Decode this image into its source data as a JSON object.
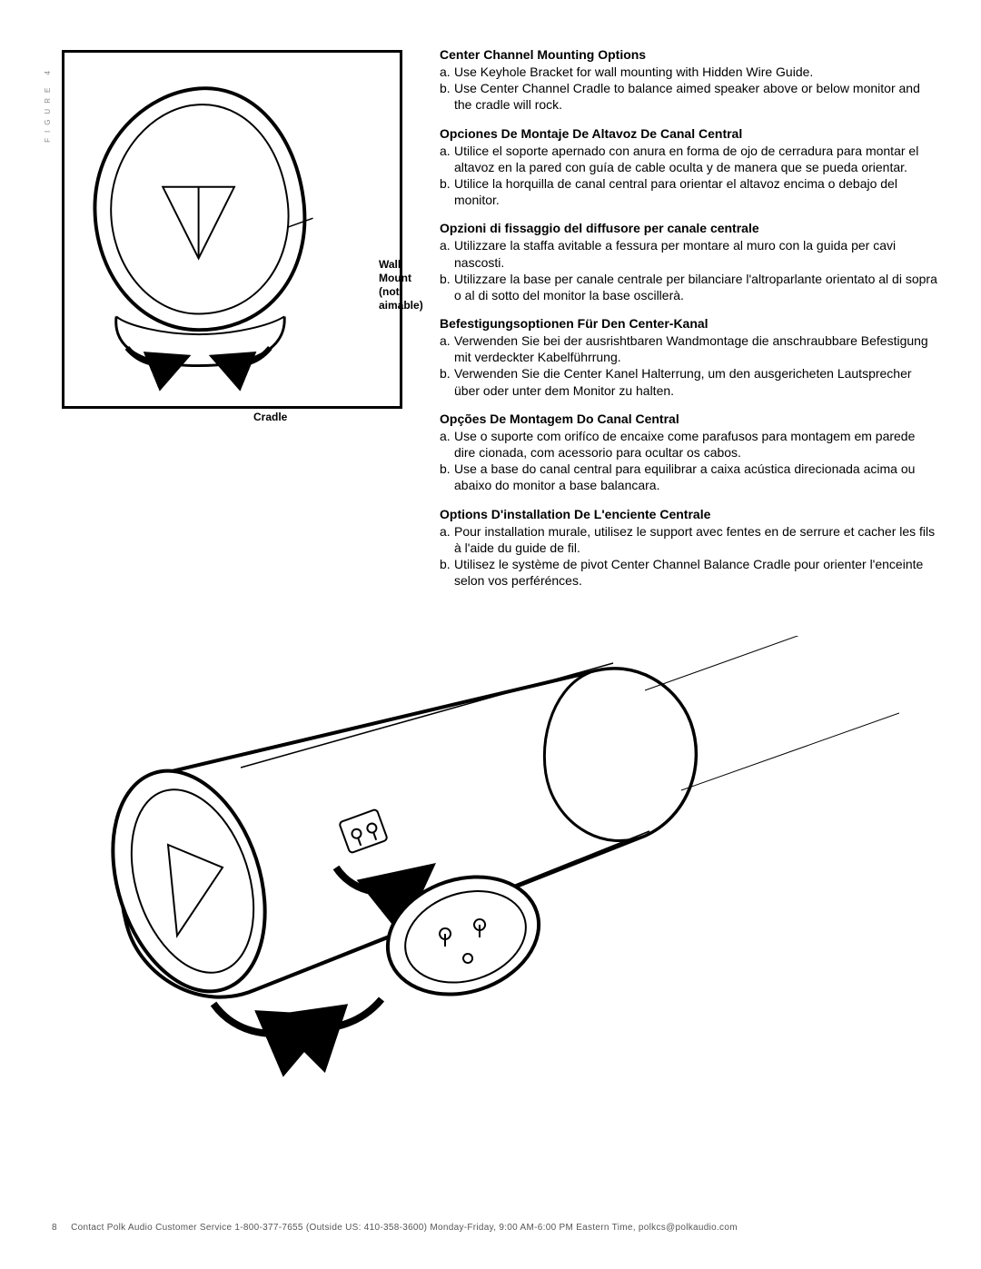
{
  "figure_tab_label": "FIGURE 4",
  "figure_labels": {
    "wall_mount": "Wall\nMount\n(not\naimable)",
    "cradle": "Cradle"
  },
  "sections": [
    {
      "title": "Center Channel Mounting Options",
      "items": [
        {
          "bullet": "a.",
          "text": "Use Keyhole Bracket for wall mounting with Hidden Wire Guide."
        },
        {
          "bullet": "b.",
          "text": "Use Center Channel Cradle to balance aimed speaker above or below monitor and the cradle will rock."
        }
      ]
    },
    {
      "title": "Opciones De Montaje De Altavoz De Canal Central",
      "items": [
        {
          "bullet": "a.",
          "text": "Utilice el soporte apernado con anura en forma de ojo de cerradura para montar el altavoz en la pared con guía de cable oculta y de manera que se pueda orientar."
        },
        {
          "bullet": "b.",
          "text": "Utilice la horquilla de canal central para orientar el altavoz encima o debajo del monitor."
        }
      ]
    },
    {
      "title": "Opzioni di fissaggio del diffusore per canale centrale",
      "items": [
        {
          "bullet": "a.",
          "text": "Utilizzare la staffa avitable a fessura per montare al muro con la guida per cavi nascosti."
        },
        {
          "bullet": "b.",
          "text": "Utilizzare la base per canale centrale per bilanciare l'altroparlante orientato al di sopra o al di sotto del monitor la base oscillerà."
        }
      ]
    },
    {
      "title": "Befestigungsoptionen Für Den Center-Kanal",
      "items": [
        {
          "bullet": "a.",
          "text": "Verwenden Sie bei der ausrishtbaren Wandmontage die anschraubbare Befestigung mit verdeckter Kabelführrung."
        },
        {
          "bullet": "b.",
          "text": "Verwenden Sie die Center Kanel Halterrung, um den ausgericheten Lautsprecher über oder unter dem Monitor zu halten."
        }
      ]
    },
    {
      "title": "Opções De Montagem Do Canal Central",
      "items": [
        {
          "bullet": "a.",
          "text": "Use o suporte com orifíco de encaixe come parafusos para montagem em parede dire cionada, com acessorio para ocultar os cabos."
        },
        {
          "bullet": "b.",
          "text": "Use a base do canal central para equilibrar a caixa acústica direcionada acima ou abaixo do monitor a base balancara."
        }
      ]
    },
    {
      "title": "Options D'installation De L'enciente Centrale",
      "items": [
        {
          "bullet": "a.",
          "text": "Pour installation murale, utilisez le support avec fentes en de serrure et cacher les fils à l'aide du guide de fil."
        },
        {
          "bullet": "b.",
          "text": "Utilisez le système de pivot Center Channel Balance Cradle pour orienter l'enceinte selon vos perférénces."
        }
      ]
    }
  ],
  "footer": {
    "page_number": "8",
    "text": "Contact Polk Audio Customer Service 1-800-377-7655 (Outside US: 410-358-3600) Monday-Friday, 9:00 AM-6:00 PM Eastern Time, polkcs@polkaudio.com"
  },
  "colors": {
    "text": "#000000",
    "muted": "#888888",
    "footer": "#555555",
    "stroke": "#000000",
    "background": "#ffffff"
  }
}
